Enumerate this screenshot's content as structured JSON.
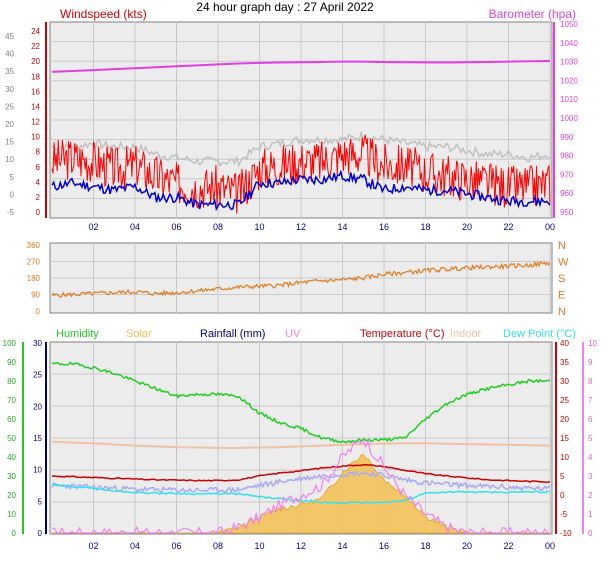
{
  "title": "24 hour graph day : 27 April 2022",
  "colors": {
    "windspeed": "#ff0000",
    "windgust": "#c0c0c0",
    "windavg": "#0000cc",
    "barometer": "#e040e0",
    "winddir": "#e07a20",
    "humidity": "#22cc22",
    "solar": "#f5c050",
    "rainfall": "#000080",
    "uv": "#f080f0",
    "temperature": "#cc0000",
    "indoor": "#f0c0a0",
    "dewpoint": "#30e0f0",
    "apparent": "#a8a8f8"
  },
  "x_labels": [
    "02",
    "04",
    "06",
    "08",
    "10",
    "12",
    "14",
    "16",
    "18",
    "20",
    "22",
    "00"
  ],
  "chart_data": [
    {
      "type": "line",
      "panel": "wind-barometer",
      "left_label": "Windspeed (kts)",
      "right_label": "Barometer (hpa)",
      "left_outer_ticks": [
        "45",
        "40",
        "35",
        "30",
        "25",
        "20",
        "15",
        "10",
        "5",
        "0",
        "-5"
      ],
      "left_inner_ticks": [
        "24",
        "22",
        "20",
        "18",
        "16",
        "14",
        "12",
        "10",
        "8",
        "6",
        "4",
        "2",
        "0"
      ],
      "right_ticks": [
        "1050",
        "1040",
        "1030",
        "1020",
        "1010",
        "1000",
        "990",
        "980",
        "970",
        "960",
        "950"
      ],
      "ylim_left": [
        0,
        25
      ],
      "ylim_right": [
        950,
        1050
      ],
      "x_hours": [
        0,
        1,
        2,
        3,
        4,
        5,
        6,
        7,
        8,
        9,
        10,
        11,
        12,
        13,
        14,
        15,
        16,
        17,
        18,
        19,
        20,
        21,
        22,
        23,
        24
      ],
      "series": [
        {
          "key": "barometer",
          "axis": "right",
          "values": [
            1024.5,
            1025,
            1025.5,
            1026,
            1026.5,
            1027,
            1027.5,
            1028,
            1028.5,
            1029,
            1029.3,
            1029.5,
            1029.7,
            1029.8,
            1030,
            1030,
            1029.8,
            1029.7,
            1029.6,
            1029.5,
            1029.7,
            1029.8,
            1030,
            1030.2,
            1030.3
          ]
        },
        {
          "key": "windgust",
          "axis": "left",
          "values": [
            9,
            9,
            9.5,
            9,
            9,
            8,
            7.5,
            7,
            7,
            7,
            9,
            9.5,
            10,
            10,
            10,
            10.5,
            10,
            9.5,
            9,
            9,
            8.5,
            8,
            8,
            7.5,
            8
          ]
        },
        {
          "key": "windspeed",
          "axis": "left",
          "values": [
            7,
            7.5,
            7,
            6,
            6.5,
            5,
            4,
            3.5,
            3.5,
            2.5,
            6,
            6.5,
            7,
            7,
            8,
            8,
            6.5,
            6.5,
            5.5,
            5,
            4.5,
            4,
            3.5,
            3.5,
            4
          ]
        },
        {
          "key": "windavg",
          "axis": "left",
          "values": [
            3.5,
            4,
            3.5,
            3,
            3.5,
            2,
            2,
            1,
            1,
            1,
            4,
            4,
            4.5,
            4.5,
            5,
            4.5,
            3,
            3.5,
            3,
            3,
            2.5,
            2,
            1.5,
            1.5,
            1.5
          ]
        }
      ]
    },
    {
      "type": "line",
      "panel": "wind-direction",
      "left_ticks": [
        "360",
        "270",
        "180",
        "90",
        "0"
      ],
      "right_ticks": [
        "N",
        "W",
        "S",
        "E",
        "N"
      ],
      "ylim": [
        0,
        360
      ],
      "x_hours": [
        0,
        1,
        2,
        3,
        4,
        5,
        6,
        7,
        8,
        9,
        10,
        11,
        12,
        13,
        14,
        15,
        16,
        17,
        18,
        19,
        20,
        21,
        22,
        23,
        24
      ],
      "series": [
        {
          "key": "winddir",
          "values": [
            85,
            90,
            95,
            100,
            105,
            95,
            100,
            110,
            120,
            130,
            135,
            140,
            155,
            165,
            170,
            180,
            200,
            210,
            220,
            228,
            235,
            240,
            245,
            250,
            262
          ]
        }
      ]
    },
    {
      "type": "area",
      "panel": "temperature-humidity",
      "legend": [
        "Humidity",
        "Solar",
        "Rainfall (mm)",
        "UV",
        "Temperature (°C)",
        "Indoor",
        "Dew Point (°C)"
      ],
      "humidity_ticks": [
        "100",
        "90",
        "80",
        "70",
        "60",
        "50",
        "40",
        "30",
        "20",
        "10",
        "0"
      ],
      "rain_ticks": [
        "30",
        "25",
        "20",
        "15",
        "10",
        "5",
        "0"
      ],
      "temp_ticks": [
        "40",
        "35",
        "30",
        "25",
        "20",
        "15",
        "10",
        "5",
        "0",
        "-5",
        "-10"
      ],
      "uv_ticks": [
        "10",
        "9",
        "8",
        "7",
        "6",
        "5",
        "4",
        "3",
        "2",
        "1",
        "0"
      ],
      "ylim_humidity": [
        0,
        100
      ],
      "ylim_temperature": [
        -10,
        40
      ],
      "x_hours": [
        0,
        1,
        2,
        3,
        4,
        5,
        6,
        7,
        8,
        9,
        10,
        11,
        12,
        13,
        14,
        15,
        16,
        17,
        18,
        19,
        20,
        21,
        22,
        23,
        24
      ],
      "series": [
        {
          "key": "humidity",
          "values": [
            89,
            89,
            87,
            84,
            80,
            76,
            72,
            73,
            73,
            72,
            63,
            58,
            55,
            50,
            48,
            49,
            49,
            50,
            60,
            68,
            73,
            76,
            78,
            80,
            80
          ]
        },
        {
          "key": "indoor",
          "axis": "temperature",
          "values": [
            14,
            13.8,
            13.6,
            13.3,
            13,
            12.8,
            12.6,
            12.5,
            12.4,
            12.4,
            12.5,
            12.6,
            12.8,
            13,
            13.2,
            13.4,
            13.5,
            13.6,
            13.6,
            13.5,
            13.4,
            13.3,
            13.2,
            13.1,
            13
          ]
        },
        {
          "key": "temperature",
          "axis": "temperature",
          "values": [
            5,
            4.8,
            4.6,
            4.4,
            4.2,
            4,
            3.9,
            3.8,
            3.8,
            4,
            5,
            5.8,
            6.4,
            7.1,
            7.6,
            8,
            7.5,
            6.5,
            5.6,
            5,
            4.5,
            4,
            3.8,
            3.6,
            3.5
          ]
        },
        {
          "key": "apparent",
          "axis": "temperature",
          "values": [
            2.5,
            2.3,
            2,
            1.8,
            1.5,
            1.4,
            1.3,
            1.2,
            1.3,
            1.4,
            2.5,
            3.5,
            4.3,
            5,
            5.5,
            5.8,
            5.2,
            4,
            3.2,
            2.8,
            2.5,
            2.2,
            2,
            1.8,
            1.6
          ]
        },
        {
          "key": "dewpoint",
          "axis": "temperature",
          "values": [
            2.5,
            2.3,
            1.8,
            1,
            0.7,
            0.5,
            0.4,
            0.3,
            0.3,
            0.3,
            -0.5,
            -1,
            -1.5,
            -2,
            -2,
            -2,
            -2,
            -1.5,
            0.5,
            0.8,
            0.8,
            0.7,
            0.7,
            0.8,
            0.8
          ]
        },
        {
          "key": "solar",
          "values": [
            0,
            0,
            0,
            0,
            0,
            0,
            0,
            0,
            0,
            30,
            80,
            130,
            150,
            180,
            320,
            420,
            280,
            200,
            90,
            30,
            0,
            0,
            0,
            0,
            0
          ]
        },
        {
          "key": "uv",
          "values": [
            0,
            0,
            0,
            0,
            0,
            0,
            0,
            0,
            0,
            0.3,
            0.8,
            1.5,
            2,
            2.5,
            4,
            5,
            3.5,
            2,
            1,
            0.3,
            0,
            0,
            0,
            0,
            0
          ]
        }
      ]
    }
  ]
}
